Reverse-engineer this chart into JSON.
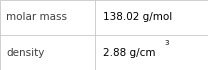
{
  "rows": [
    {
      "label": "molar mass",
      "value": "138.02 g/mol",
      "has_superscript": false
    },
    {
      "label": "density",
      "value_base": "2.88 g/cm",
      "superscript": "3",
      "has_superscript": true
    }
  ],
  "background_color": "#ffffff",
  "border_color": "#c8c8c8",
  "label_color": "#404040",
  "value_color": "#000000",
  "label_fontsize": 7.5,
  "value_fontsize": 7.5,
  "super_fontsize": 5.0,
  "col_split": 0.455,
  "figwidth": 2.08,
  "figheight": 0.7,
  "dpi": 100
}
